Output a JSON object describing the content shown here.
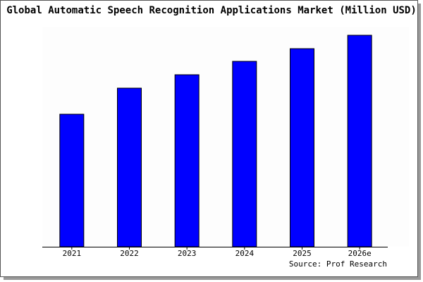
{
  "chart_data": {
    "type": "bar",
    "title": "Global Automatic Speech Recognition Applications Market (Million USD)",
    "categories": [
      "2021",
      "2022",
      "2023",
      "2024",
      "2025",
      "2026e"
    ],
    "values": [
      188,
      225,
      244,
      263,
      281,
      300
    ],
    "color": "#0000ff",
    "source": "Source: Prof Research"
  }
}
